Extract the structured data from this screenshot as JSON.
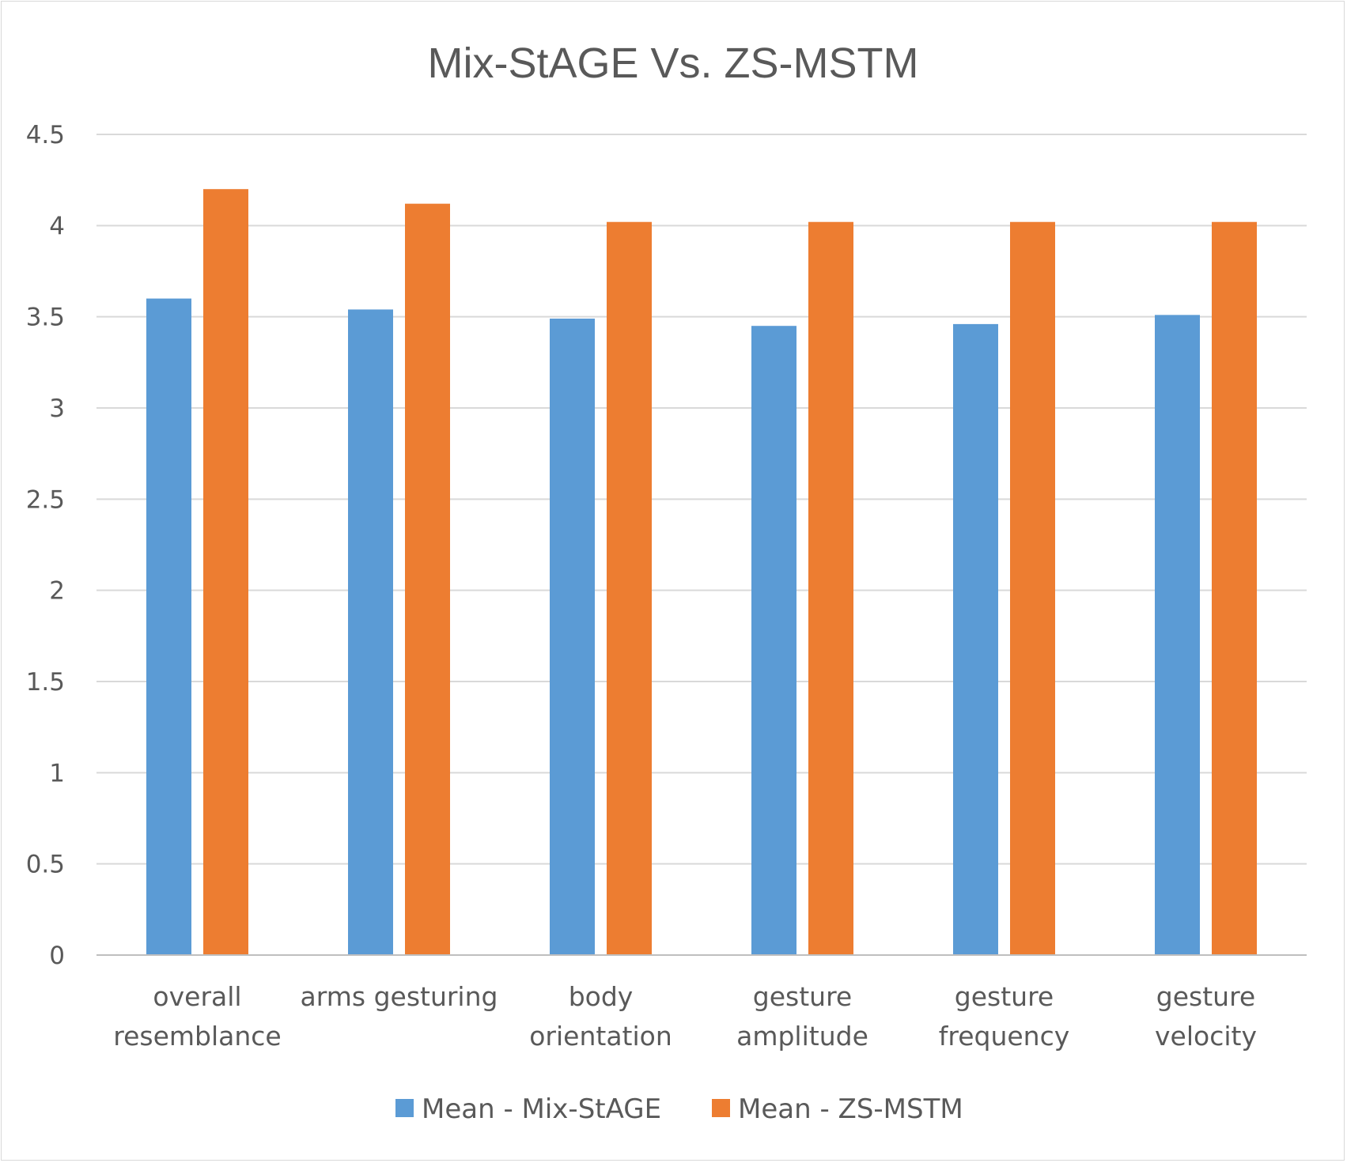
{
  "chart_data": {
    "type": "bar",
    "title": "Mix-StAGE Vs. ZS-MSTM",
    "xlabel": "",
    "ylabel": "",
    "ylim": [
      0,
      4.5
    ],
    "yticks": [
      "0",
      "0.5",
      "1",
      "1.5",
      "2",
      "2.5",
      "3",
      "3.5",
      "4",
      "4.5"
    ],
    "grid": true,
    "legend_position": "bottom",
    "categories": [
      [
        "overall",
        "resemblance"
      ],
      [
        "arms gesturing"
      ],
      [
        "body",
        "orientation"
      ],
      [
        "gesture",
        "amplitude"
      ],
      [
        "gesture",
        "frequency"
      ],
      [
        "gesture",
        "velocity"
      ]
    ],
    "series": [
      {
        "name": "Mean - Mix-StAGE",
        "color": "#5b9bd5",
        "values": [
          3.6,
          3.54,
          3.49,
          3.45,
          3.46,
          3.51
        ]
      },
      {
        "name": "Mean - ZS-MSTM",
        "color": "#ed7d31",
        "values": [
          4.2,
          4.12,
          4.02,
          4.02,
          4.02,
          4.02
        ]
      }
    ]
  }
}
